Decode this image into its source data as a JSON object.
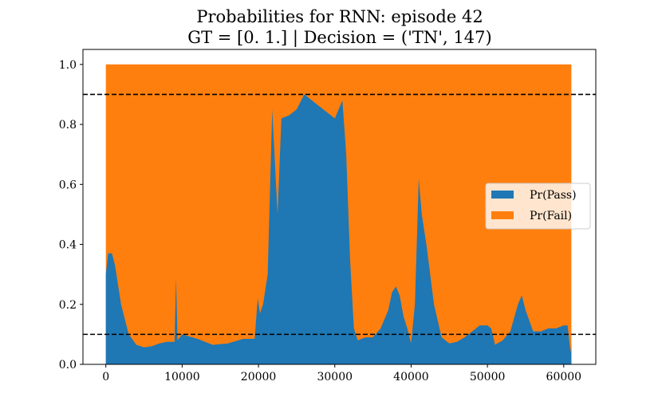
{
  "chart_data": {
    "type": "area",
    "title_line1": "Probabilities for RNN: episode 42",
    "title_line2": "GT = [0. 1.] | Decision = ('TN', 147)",
    "xlabel": "",
    "ylabel": "",
    "xlim": [
      -3000,
      64200
    ],
    "ylim": [
      0,
      1.05
    ],
    "x_ticks": [
      0,
      10000,
      20000,
      30000,
      40000,
      50000,
      60000
    ],
    "y_ticks": [
      0.0,
      0.2,
      0.4,
      0.6,
      0.8,
      1.0
    ],
    "x_tick_labels": [
      "0",
      "10000",
      "20000",
      "30000",
      "40000",
      "50000",
      "60000"
    ],
    "y_tick_labels": [
      "0.0",
      "0.2",
      "0.4",
      "0.6",
      "0.8",
      "1.0"
    ],
    "grid": false,
    "legend_placement": "center-right",
    "thresholds": [
      0.9,
      0.1
    ],
    "series": [
      {
        "name": "Pr(Pass)",
        "color": "#1f77b4"
      },
      {
        "name": "Pr(Fail)",
        "color": "#ff7f0e"
      }
    ],
    "x": [
      0,
      300,
      800,
      1200,
      2000,
      3000,
      4000,
      5000,
      6000,
      7000,
      8000,
      9000,
      9200,
      9400,
      10000,
      12000,
      14000,
      16000,
      18000,
      19500,
      19900,
      20200,
      20600,
      21200,
      21800,
      22500,
      23000,
      24000,
      25000,
      26000,
      27000,
      28000,
      29000,
      30000,
      31000,
      31500,
      32000,
      32500,
      33000,
      34000,
      35000,
      36000,
      37000,
      37500,
      38000,
      38500,
      39000,
      39500,
      40000,
      40500,
      41000,
      41400,
      42000,
      43000,
      44000,
      45000,
      46000,
      47000,
      48000,
      49000,
      50000,
      50500,
      51000,
      52000,
      53000,
      54000,
      54500,
      55000,
      56000,
      57000,
      58000,
      59000,
      60000,
      60500,
      60900,
      61000
    ],
    "pass": [
      0.3,
      0.37,
      0.37,
      0.33,
      0.2,
      0.1,
      0.065,
      0.057,
      0.06,
      0.07,
      0.075,
      0.075,
      0.29,
      0.08,
      0.1,
      0.085,
      0.065,
      0.07,
      0.085,
      0.085,
      0.22,
      0.17,
      0.2,
      0.3,
      0.85,
      0.5,
      0.82,
      0.83,
      0.85,
      0.9,
      0.88,
      0.86,
      0.84,
      0.82,
      0.88,
      0.7,
      0.35,
      0.12,
      0.08,
      0.09,
      0.09,
      0.12,
      0.18,
      0.24,
      0.26,
      0.23,
      0.16,
      0.12,
      0.07,
      0.2,
      0.62,
      0.5,
      0.4,
      0.2,
      0.09,
      0.07,
      0.075,
      0.09,
      0.11,
      0.13,
      0.13,
      0.12,
      0.065,
      0.08,
      0.11,
      0.2,
      0.23,
      0.18,
      0.11,
      0.11,
      0.12,
      0.12,
      0.13,
      0.13,
      0.04,
      0.07
    ]
  },
  "legend": {
    "pass_label": "Pr(Pass)",
    "fail_label": "Pr(Fail)"
  }
}
